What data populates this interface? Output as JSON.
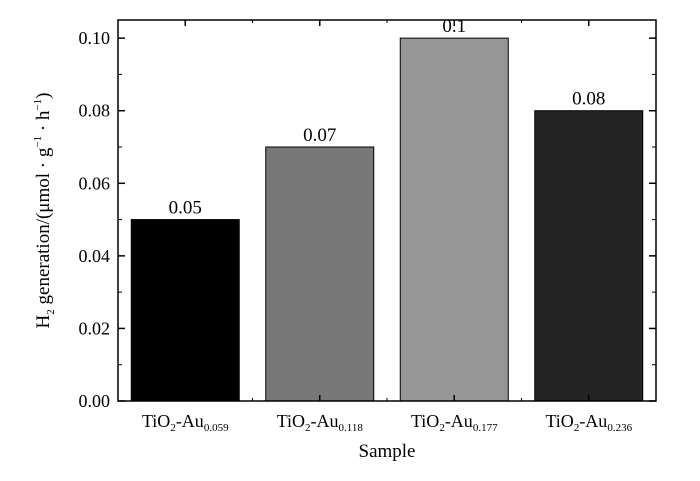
{
  "chart_data": {
    "type": "bar",
    "categories": [
      {
        "base": "TiO",
        "sub1": "2",
        "mid": "-Au",
        "sub2": "0.059"
      },
      {
        "base": "TiO",
        "sub1": "2",
        "mid": "-Au",
        "sub2": "0.118"
      },
      {
        "base": "TiO",
        "sub1": "2",
        "mid": "-Au",
        "sub2": "0.177"
      },
      {
        "base": "TiO",
        "sub1": "2",
        "mid": "-Au",
        "sub2": "0.236"
      }
    ],
    "values": [
      0.05,
      0.07,
      0.1,
      0.08
    ],
    "data_labels": [
      "0.05",
      "0.07",
      "0.1",
      "0.08"
    ],
    "bar_colors": [
      "#000000",
      "#787878",
      "#969696",
      "#242424"
    ],
    "xlabel": "Sample",
    "ylabel": {
      "pre": "H",
      "sub": "2",
      "post": " generation/(μmol · g",
      "sup1": "−1",
      "mid": " · h",
      "sup2": "−1",
      "end": ")"
    },
    "ylim": [
      0,
      0.105
    ],
    "yticks": [
      "0.00",
      "0.02",
      "0.04",
      "0.06",
      "0.08",
      "0.10"
    ],
    "ytick_values": [
      0,
      0.02,
      0.04,
      0.06,
      0.08,
      0.1
    ],
    "grid": false
  }
}
